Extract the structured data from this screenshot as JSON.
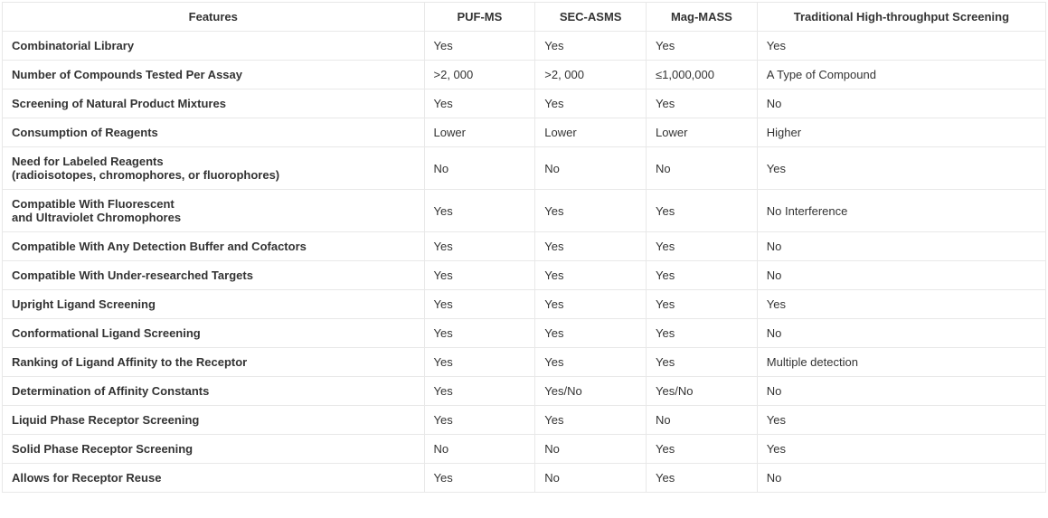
{
  "table": {
    "columns": [
      "Features",
      "PUF-MS",
      "SEC-ASMS",
      "Mag-MASS",
      "Traditional High-throughput Screening"
    ],
    "rows": [
      [
        "Combinatorial Library",
        "Yes",
        "Yes",
        "Yes",
        "Yes"
      ],
      [
        "Number of Compounds Tested Per Assay",
        ">2, 000",
        ">2, 000",
        "≤1,000,000",
        "A Type of Compound"
      ],
      [
        "Screening of Natural Product Mixtures",
        "Yes",
        "Yes",
        "Yes",
        "No"
      ],
      [
        "Consumption of Reagents",
        "Lower",
        "Lower",
        "Lower",
        "Higher"
      ],
      [
        "Need for Labeled Reagents\n(radioisotopes, chromophores, or fluorophores)",
        "No",
        "No",
        "No",
        "Yes"
      ],
      [
        "Compatible With Fluorescent\nand Ultraviolet Chromophores",
        "Yes",
        "Yes",
        "Yes",
        "No Interference"
      ],
      [
        "Compatible With Any Detection Buffer and Cofactors",
        "Yes",
        "Yes",
        "Yes",
        "No"
      ],
      [
        "Compatible With Under-researched Targets",
        "Yes",
        "Yes",
        "Yes",
        "No"
      ],
      [
        "Upright Ligand Screening",
        "Yes",
        "Yes",
        "Yes",
        "Yes"
      ],
      [
        "Conformational Ligand Screening",
        "Yes",
        "Yes",
        "Yes",
        "No"
      ],
      [
        "Ranking of Ligand Affinity to the Receptor",
        "Yes",
        "Yes",
        "Yes",
        "Multiple detection"
      ],
      [
        "Determination of Affinity Constants",
        "Yes",
        "Yes/No",
        "Yes/No",
        "No"
      ],
      [
        "Liquid Phase Receptor Screening",
        "Yes",
        "Yes",
        "No",
        "Yes"
      ],
      [
        "Solid Phase Receptor Screening",
        "No",
        "No",
        "Yes",
        "Yes"
      ],
      [
        "Allows for Receptor Reuse",
        "Yes",
        "No",
        "Yes",
        "No"
      ]
    ],
    "border_color": "#e8e8e8",
    "text_color": "#333333",
    "background_color": "#ffffff",
    "font_size": 13,
    "header_font_weight": "bold",
    "first_col_font_weight": "bold"
  }
}
